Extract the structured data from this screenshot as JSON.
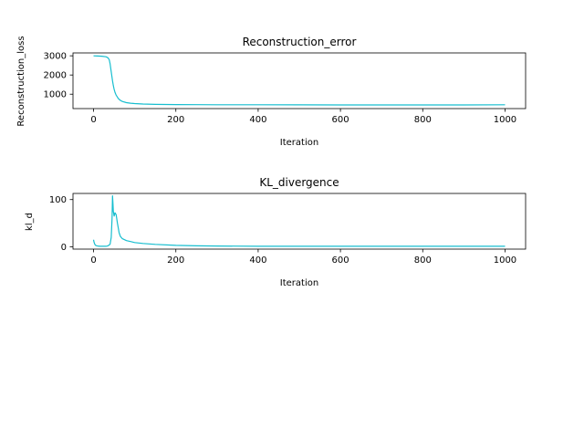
{
  "chart_data": [
    {
      "type": "line",
      "title": "Reconstruction_error",
      "xlabel": "Iteration",
      "ylabel": "Reconstruction_loss",
      "xlim": [
        -50,
        1050
      ],
      "ylim": [
        250,
        3150
      ],
      "xticks": [
        0,
        200,
        400,
        600,
        800,
        1000
      ],
      "yticks": [
        1000,
        2000,
        3000
      ],
      "grid": false,
      "legend": "none",
      "color": "#17becf",
      "series": [
        {
          "x": [
            0,
            10,
            20,
            30,
            35,
            38,
            40,
            42,
            44,
            46,
            48,
            50,
            52,
            55,
            58,
            60,
            65,
            70,
            80,
            90,
            100,
            120,
            150,
            200,
            250,
            300,
            400,
            500,
            600,
            700,
            800,
            900,
            1000
          ],
          "y": [
            3000,
            2990,
            2980,
            2950,
            2900,
            2800,
            2600,
            2300,
            2000,
            1700,
            1450,
            1250,
            1100,
            950,
            850,
            780,
            680,
            620,
            560,
            530,
            510,
            490,
            470,
            460,
            455,
            450,
            450,
            445,
            440,
            440,
            440,
            440,
            450
          ]
        }
      ]
    },
    {
      "type": "line",
      "title": "KL_divergence",
      "xlabel": "Iteration",
      "ylabel": "kl_d",
      "xlim": [
        -50,
        1050
      ],
      "ylim": [
        -5,
        113
      ],
      "xticks": [
        0,
        200,
        400,
        600,
        800,
        1000
      ],
      "yticks": [
        0,
        100
      ],
      "grid": false,
      "legend": "none",
      "color": "#17becf",
      "series": [
        {
          "x": [
            0,
            1,
            3,
            5,
            8,
            10,
            15,
            20,
            25,
            30,
            35,
            40,
            43,
            45,
            46,
            47,
            48,
            50,
            52,
            55,
            58,
            60,
            62,
            65,
            70,
            80,
            90,
            100,
            120,
            150,
            200,
            250,
            300,
            400,
            500,
            600,
            700,
            800,
            900,
            1000
          ],
          "y": [
            15,
            10,
            5,
            3,
            2,
            1.5,
            1,
            1,
            1,
            1,
            2,
            5,
            20,
            60,
            108,
            95,
            75,
            65,
            72,
            68,
            50,
            40,
            30,
            22,
            17,
            13,
            11,
            9,
            7,
            5,
            3,
            2,
            1.5,
            1,
            1,
            1,
            1,
            1,
            1,
            1
          ]
        }
      ]
    }
  ]
}
